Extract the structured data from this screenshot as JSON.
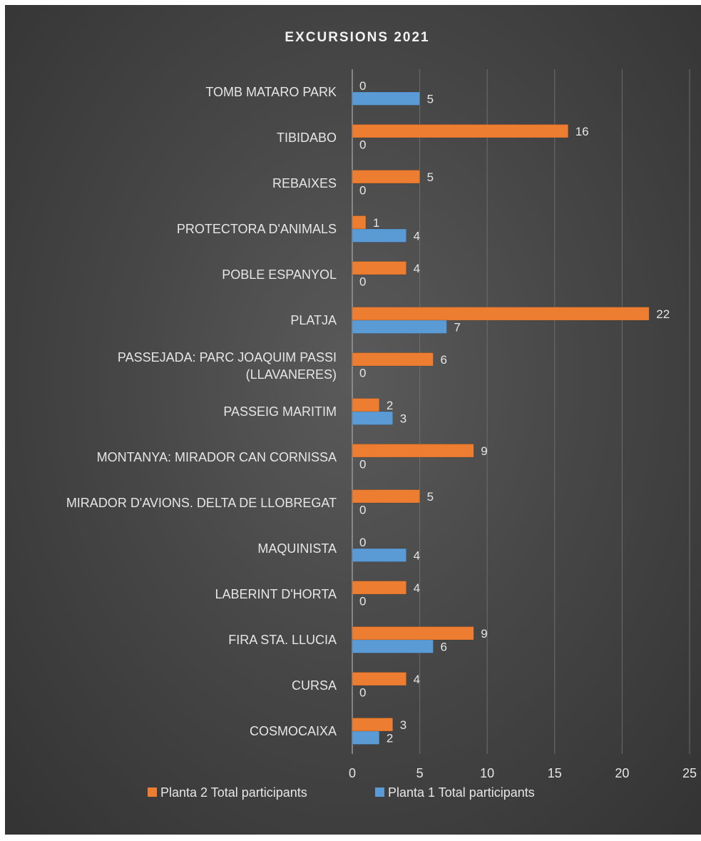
{
  "chart_data": {
    "type": "bar",
    "orientation": "horizontal",
    "title": "EXCURSIONS 2021",
    "categories": [
      [
        "TOMB MATARO PARK"
      ],
      [
        "TIBIDABO"
      ],
      [
        "REBAIXES"
      ],
      [
        "PROTECTORA D'ANIMALS"
      ],
      [
        "POBLE ESPANYOL"
      ],
      [
        "PLATJA"
      ],
      [
        "PASSEJADA: PARC JOAQUIM PASSI",
        "(LLAVANERES)"
      ],
      [
        "PASSEIG MARITIM"
      ],
      [
        "MONTANYA: MIRADOR CAN CORNISSA"
      ],
      [
        "MIRADOR D'AVIONS. DELTA DE LLOBREGAT"
      ],
      [
        "MAQUINISTA"
      ],
      [
        "LABERINT D'HORTA"
      ],
      [
        "FIRA STA. LLUCIA"
      ],
      [
        "CURSA"
      ],
      [
        "COSMOCAIXA"
      ]
    ],
    "series": [
      {
        "name": "Planta 2 Total participants",
        "color": "#ed7d31",
        "values": [
          0,
          16,
          5,
          1,
          4,
          22,
          6,
          2,
          9,
          5,
          0,
          4,
          9,
          4,
          3
        ]
      },
      {
        "name": "Planta 1 Total participants",
        "color": "#5b9bd5",
        "values": [
          5,
          0,
          0,
          4,
          0,
          7,
          0,
          3,
          0,
          0,
          4,
          0,
          6,
          0,
          2
        ]
      }
    ],
    "xlim": [
      0,
      25
    ],
    "xticks": [
      "0",
      "5",
      "10",
      "15",
      "20",
      "25"
    ],
    "grid": true,
    "legend_position": "bottom",
    "data_labels": true
  }
}
